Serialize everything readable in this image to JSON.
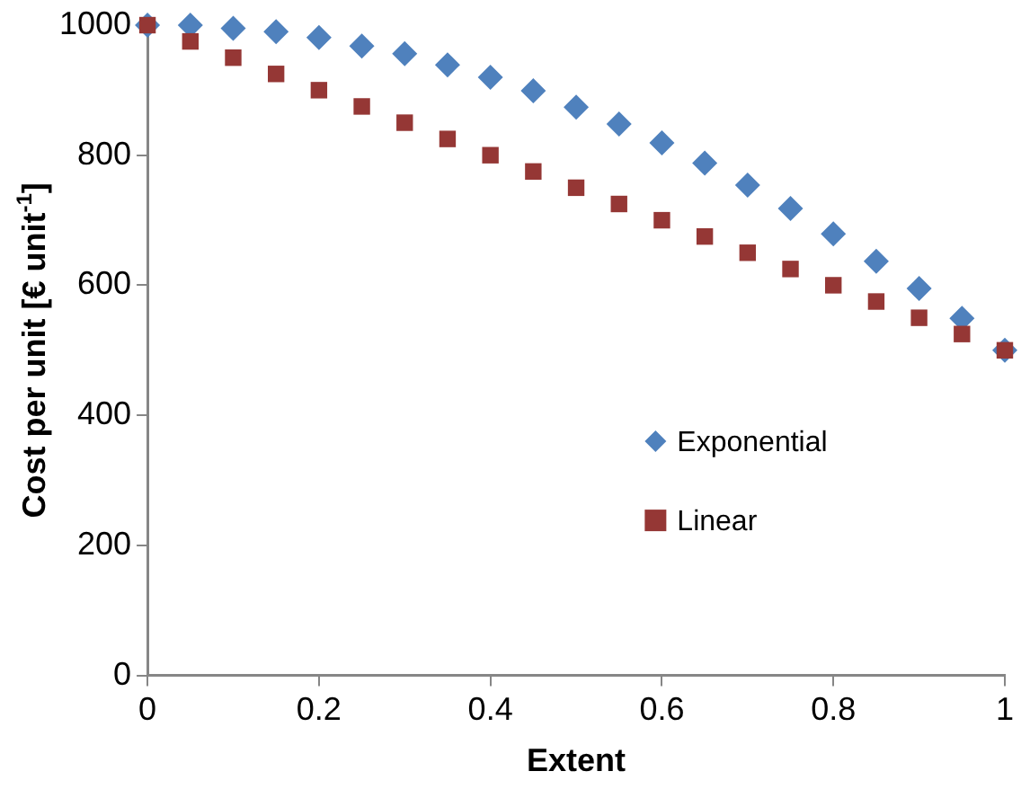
{
  "chart_data": {
    "type": "scatter",
    "xlabel": "Extent",
    "ylabel": "Cost per unit [€ unit$^{-1}$]",
    "x": [
      0,
      0.05,
      0.1,
      0.15,
      0.2,
      0.25,
      0.3,
      0.35,
      0.4,
      0.45,
      0.5,
      0.55,
      0.6,
      0.65,
      0.7,
      0.75,
      0.8,
      0.85,
      0.9,
      0.95,
      1
    ],
    "series": [
      {
        "name": "Exponential",
        "color": "#4f81bd",
        "marker": "diamond",
        "values": [
          1000,
          1000,
          995,
          990,
          981,
          968,
          956,
          939,
          920,
          899,
          874,
          848,
          819,
          788,
          754,
          718,
          679,
          637,
          595,
          549,
          500
        ]
      },
      {
        "name": "Linear",
        "color": "#953735",
        "marker": "square",
        "values": [
          1000,
          975,
          950,
          925,
          900,
          875,
          850,
          825,
          800,
          775,
          750,
          725,
          700,
          675,
          650,
          625,
          600,
          575,
          550,
          525,
          500
        ]
      }
    ],
    "xlim": [
      0,
      1
    ],
    "xticks": [
      0,
      0.2,
      0.4,
      0.6,
      0.8,
      1
    ],
    "ylim": [
      0,
      1000
    ],
    "yticks": [
      0,
      200,
      400,
      600,
      800,
      1000
    ],
    "grid": false,
    "legend": "right"
  }
}
